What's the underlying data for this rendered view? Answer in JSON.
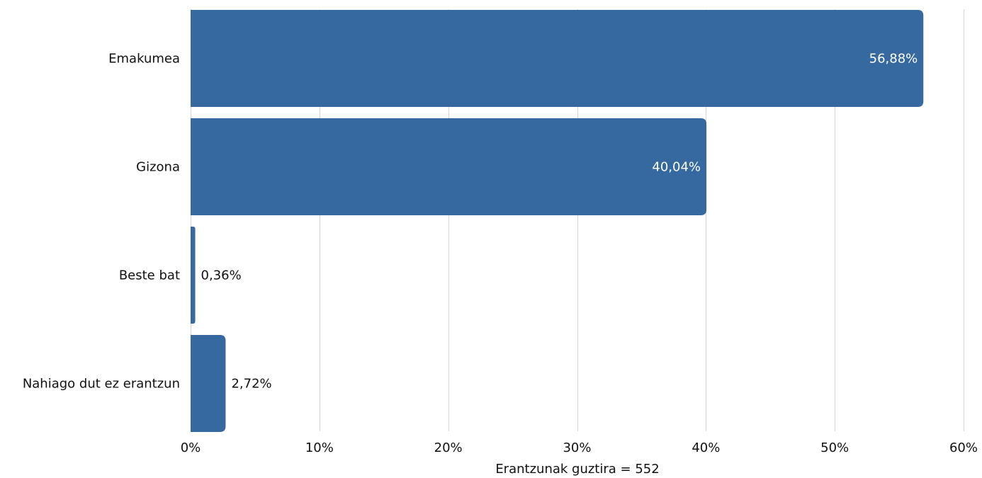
{
  "chart_data": {
    "type": "bar",
    "orientation": "horizontal",
    "categories": [
      "Emakumea",
      "Gizona",
      "Beste bat",
      "Nahiago dut ez erantzun"
    ],
    "values": [
      56.88,
      40.04,
      0.36,
      2.72
    ],
    "value_labels": [
      "56,88%",
      "40,04%",
      "0,36%",
      "2,72%"
    ],
    "xlabel": "Erantzunak guztira = 552",
    "ylabel": "",
    "title": "",
    "xlim": [
      0,
      60
    ],
    "xticks": [
      0,
      10,
      20,
      30,
      40,
      50,
      60
    ],
    "xtick_labels": [
      "0%",
      "10%",
      "20%",
      "30%",
      "40%",
      "50%",
      "60%"
    ],
    "grid": true,
    "legend": "none",
    "colors": {
      "bar": "#36699f",
      "grid": "#d4d4d4",
      "label_inside": "#ffffff",
      "label_outside": "#111111"
    }
  }
}
